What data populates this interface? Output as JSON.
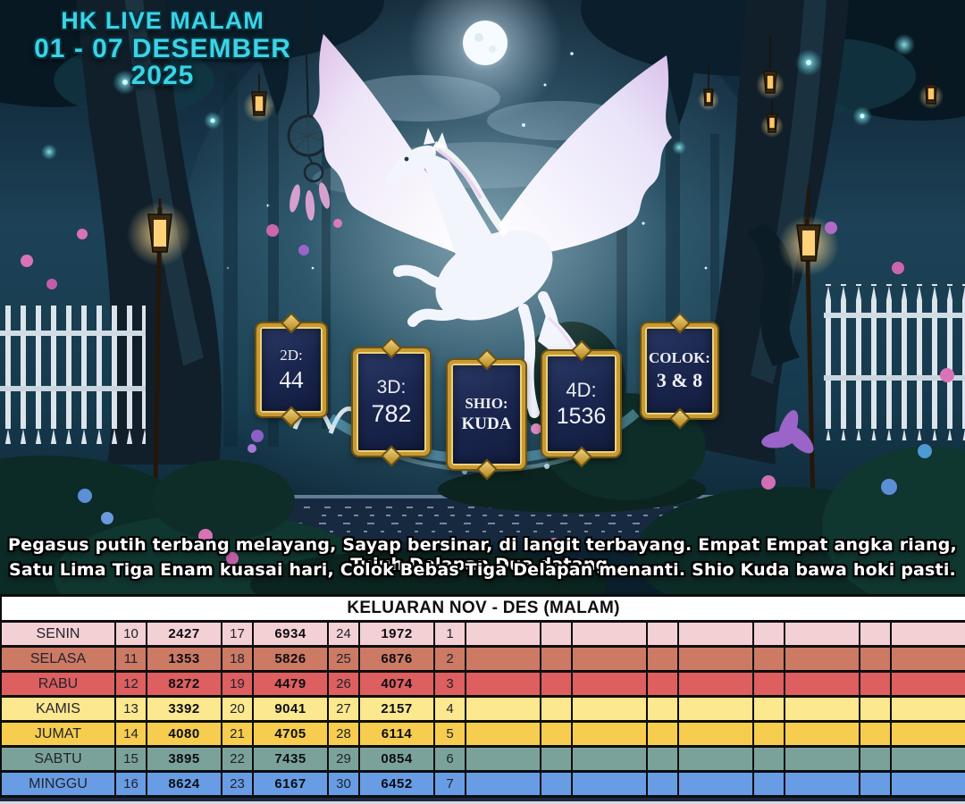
{
  "header": {
    "line1": "HK LIVE MALAM",
    "line2": "01 - 07 DESEMBER 2025"
  },
  "frames": [
    {
      "label": "2D:",
      "value": "44"
    },
    {
      "label": "3D:",
      "value": "782"
    },
    {
      "label": "SHIO:",
      "value": "KUDA"
    },
    {
      "label": "4D:",
      "value": "1536"
    },
    {
      "label": "COLOK:",
      "value": "3 & 8"
    }
  ],
  "caption": {
    "line1": "Pegasus putih terbang melayang, Sayap bersinar, di langit terbayang. Empat Empat angka riang, Tujuh Delapan Dua datang.",
    "line2": "Satu Lima Tiga Enam kuasai hari, Colok Bebas Tiga Delapan menanti. Shio Kuda bawa hoki pasti."
  },
  "table": {
    "title": "KELUARAN NOV - DES (MALAM)",
    "rows": [
      {
        "day": "SENIN",
        "color": "#f3d0d4",
        "cells": [
          "10",
          "2427",
          "17",
          "6934",
          "24",
          "1972",
          "1",
          "",
          "",
          "",
          "",
          "",
          "",
          "",
          "",
          ""
        ]
      },
      {
        "day": "SELASA",
        "color": "#cc7a64",
        "cells": [
          "11",
          "1353",
          "18",
          "5826",
          "25",
          "6876",
          "2",
          "",
          "",
          "",
          "",
          "",
          "",
          "",
          "",
          ""
        ]
      },
      {
        "day": "RABU",
        "color": "#dd5f5f",
        "cells": [
          "12",
          "8272",
          "19",
          "4479",
          "26",
          "4074",
          "3",
          "",
          "",
          "",
          "",
          "",
          "",
          "",
          "",
          ""
        ]
      },
      {
        "day": "KAMIS",
        "color": "#fbe88f",
        "cells": [
          "13",
          "3392",
          "20",
          "9041",
          "27",
          "2157",
          "4",
          "",
          "",
          "",
          "",
          "",
          "",
          "",
          "",
          ""
        ]
      },
      {
        "day": "JUMAT",
        "color": "#f6cd4e",
        "cells": [
          "14",
          "4080",
          "21",
          "4705",
          "28",
          "6114",
          "5",
          "",
          "",
          "",
          "",
          "",
          "",
          "",
          "",
          ""
        ]
      },
      {
        "day": "SABTU",
        "color": "#7aa29b",
        "cells": [
          "15",
          "3895",
          "22",
          "7435",
          "29",
          "0854",
          "6",
          "",
          "",
          "",
          "",
          "",
          "",
          "",
          "",
          ""
        ]
      },
      {
        "day": "MINGGU",
        "color": "#689de5",
        "cells": [
          "16",
          "8624",
          "23",
          "6167",
          "30",
          "6452",
          "7",
          "",
          "",
          "",
          "",
          "",
          "",
          "",
          "",
          ""
        ]
      }
    ]
  },
  "colors": {
    "title_accent": "#3bd3e6",
    "frame_gold": "#c89a33",
    "frame_navy": "#1b2750",
    "row_senin": "#f3d0d4",
    "row_selasa": "#cc7a64",
    "row_rabu": "#dd5f5f",
    "row_kamis": "#fbe88f",
    "row_jumat": "#f6cd4e",
    "row_sabtu": "#7aa29b",
    "row_minggu": "#689de5"
  }
}
